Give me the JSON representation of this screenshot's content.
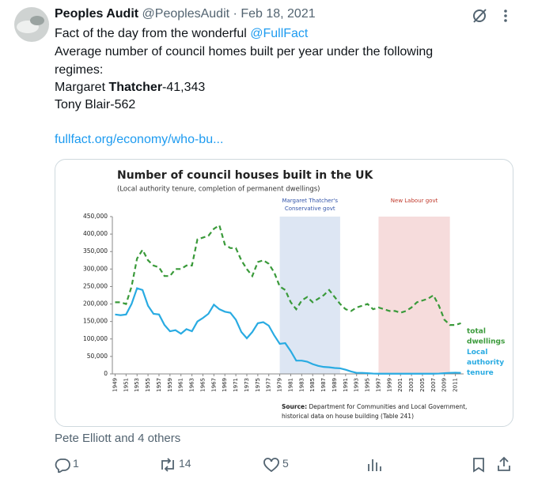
{
  "tweet": {
    "author": "Peoples Audit",
    "handle": "@PeoplesAudit",
    "separator": "·",
    "date": "Feb 18, 2021",
    "text": {
      "line1_prefix": "Fact of the day from the wonderful ",
      "mention": "@FullFact",
      "line2": "Average number of council homes built per year under the following",
      "line3": "regimes:",
      "line4_a": "Margaret ",
      "line4_b": "Thatcher",
      "line4_c": "-41,343",
      "line5": "Tony Blair-562",
      "link": "fullfact.org/economy/who-bu..."
    },
    "liked_by": "Pete Elliott and 4 others",
    "actions": {
      "replies": "1",
      "retweets": "14",
      "likes": "5"
    }
  },
  "chart_data": {
    "type": "line",
    "title": "Number of council houses built in the UK",
    "subtitle": "(Local authority tenure, completion of permanent dwellings)",
    "source_label": "Source:",
    "source_line1": "Department for Communities and Local Government,",
    "source_line2": "historical data on house building (Table 241)",
    "x": [
      1949,
      1950,
      1951,
      1952,
      1953,
      1954,
      1955,
      1956,
      1957,
      1958,
      1959,
      1960,
      1961,
      1962,
      1963,
      1964,
      1965,
      1966,
      1967,
      1968,
      1969,
      1970,
      1971,
      1972,
      1973,
      1974,
      1975,
      1976,
      1977,
      1978,
      1979,
      1980,
      1981,
      1982,
      1983,
      1984,
      1985,
      1986,
      1987,
      1988,
      1989,
      1990,
      1991,
      1992,
      1993,
      1994,
      1995,
      1996,
      1997,
      1998,
      1999,
      2000,
      2001,
      2002,
      2003,
      2004,
      2005,
      2006,
      2007,
      2008,
      2009,
      2010,
      2011,
      2012
    ],
    "series": [
      {
        "label_lines": [
          "total",
          "dwellings"
        ],
        "color": "#3a9a3a",
        "dashed": true,
        "values": [
          205000,
          205000,
          200000,
          250000,
          330000,
          355000,
          325000,
          310000,
          305000,
          280000,
          280000,
          300000,
          300000,
          310000,
          310000,
          385000,
          390000,
          395000,
          415000,
          425000,
          370000,
          360000,
          360000,
          325000,
          300000,
          280000,
          320000,
          325000,
          315000,
          290000,
          250000,
          240000,
          205000,
          185000,
          210000,
          220000,
          205000,
          215000,
          225000,
          240000,
          220000,
          200000,
          185000,
          180000,
          190000,
          195000,
          200000,
          185000,
          190000,
          185000,
          180000,
          180000,
          175000,
          180000,
          190000,
          205000,
          210000,
          215000,
          225000,
          195000,
          155000,
          140000,
          140000,
          145000
        ]
      },
      {
        "label_lines": [
          "Local",
          "authority",
          "tenure"
        ],
        "color": "#29abe2",
        "dashed": false,
        "values": [
          170000,
          168000,
          170000,
          200000,
          245000,
          240000,
          195000,
          172000,
          170000,
          140000,
          122000,
          125000,
          115000,
          128000,
          122000,
          150000,
          160000,
          172000,
          198000,
          185000,
          178000,
          175000,
          155000,
          120000,
          102000,
          120000,
          145000,
          148000,
          138000,
          110000,
          86000,
          88000,
          65000,
          38000,
          38000,
          35000,
          28000,
          23000,
          20000,
          19000,
          17000,
          16000,
          12000,
          7000,
          3000,
          3000,
          2000,
          1000,
          500,
          500,
          500,
          500,
          500,
          500,
          500,
          500,
          500,
          500,
          500,
          1000,
          2000,
          3000,
          3500,
          3000
        ]
      }
    ],
    "shades": [
      {
        "label_lines": [
          "Margaret Thatcher's",
          "Conservative govt"
        ],
        "from": 1979,
        "to": 1990,
        "color": "#dde6f3",
        "label_color": "#3355aa"
      },
      {
        "label_lines": [
          "New Labour govt"
        ],
        "from": 1997,
        "to": 2010,
        "color": "#f6dcdc",
        "label_color": "#c0392b"
      }
    ],
    "xlim": [
      1948.5,
      2012.5
    ],
    "xticks": [
      1949,
      1951,
      1953,
      1955,
      1957,
      1959,
      1961,
      1963,
      1965,
      1967,
      1969,
      1971,
      1973,
      1975,
      1977,
      1979,
      1981,
      1983,
      1985,
      1987,
      1989,
      1991,
      1993,
      1995,
      1997,
      1999,
      2001,
      2003,
      2005,
      2007,
      2009,
      2011
    ],
    "ylim": [
      0,
      450000
    ],
    "yticks": [
      0,
      {
        "value": 50000,
        "label": "50,000"
      },
      {
        "value": 100000,
        "label": "100,000"
      },
      {
        "value": 150000,
        "label": "150,000"
      },
      {
        "value": 200000,
        "label": "200,000"
      },
      {
        "value": 250000,
        "label": "250,000"
      },
      {
        "value": 300000,
        "label": "300,000"
      },
      {
        "value": 350000,
        "label": "350,000"
      },
      {
        "value": 400000,
        "label": "400,000"
      },
      {
        "value": 450000,
        "label": "450,000"
      }
    ]
  }
}
